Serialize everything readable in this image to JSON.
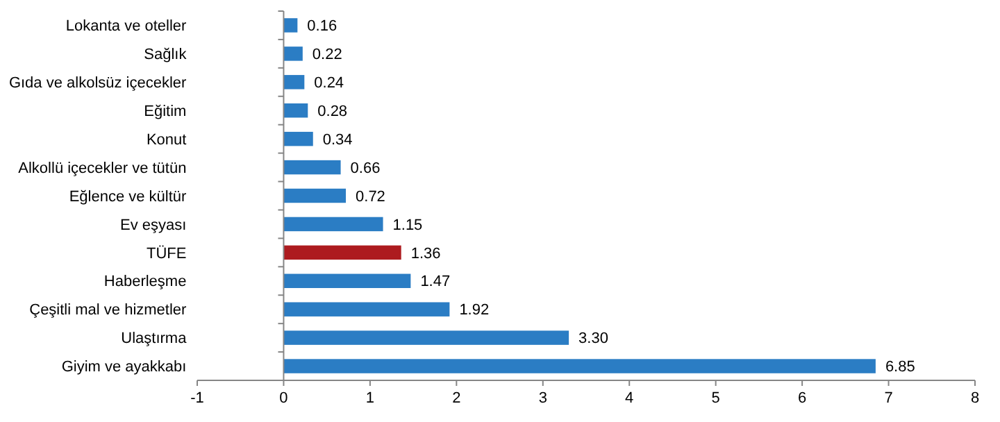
{
  "chart_data": {
    "type": "bar",
    "orientation": "horizontal",
    "categories": [
      "Lokanta ve oteller",
      "Sağlık",
      "Gıda ve alkolsüz içecekler",
      "Eğitim",
      "Konut",
      "Alkollü içecekler ve tütün",
      "Eğlence ve kültür",
      "Ev eşyası",
      "TÜFE",
      "Haberleşme",
      "Çeşitli mal ve hizmetler",
      "Ulaştırma",
      "Giyim ve ayakkabı"
    ],
    "values": [
      0.16,
      0.22,
      0.24,
      0.28,
      0.34,
      0.66,
      0.72,
      1.15,
      1.36,
      1.47,
      1.92,
      3.3,
      6.85
    ],
    "colors": [
      "#2b7dc4",
      "#2b7dc4",
      "#2b7dc4",
      "#2b7dc4",
      "#2b7dc4",
      "#2b7dc4",
      "#2b7dc4",
      "#2b7dc4",
      "#ad1b1f",
      "#2b7dc4",
      "#2b7dc4",
      "#2b7dc4",
      "#2b7dc4"
    ],
    "value_labels": [
      "0.16",
      "0.22",
      "0.24",
      "0.28",
      "0.34",
      "0.66",
      "0.72",
      "1.15",
      "1.36",
      "1.47",
      "1.92",
      "3.30",
      "6.85"
    ],
    "xlim": [
      -1,
      8
    ],
    "xticks": [
      -1,
      0,
      1,
      2,
      3,
      4,
      5,
      6,
      7,
      8
    ]
  }
}
